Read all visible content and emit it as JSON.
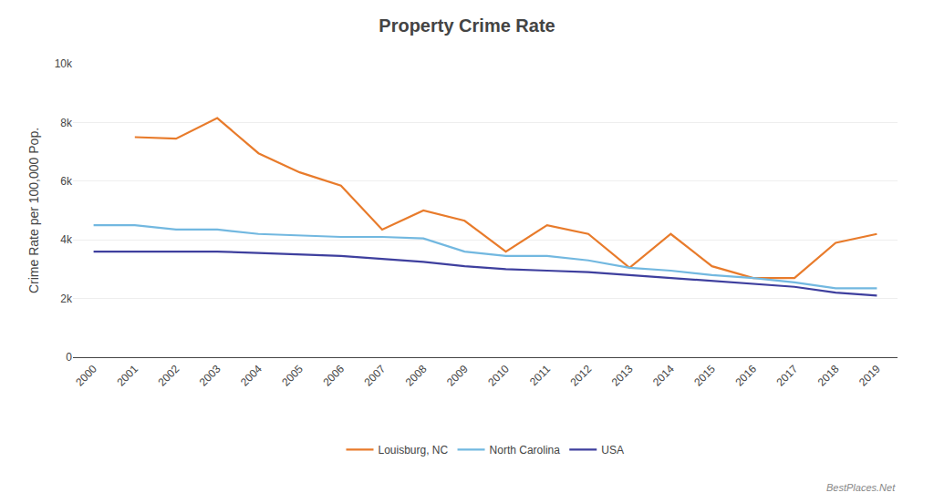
{
  "chart_data": {
    "type": "line",
    "title": "Property Crime Rate",
    "y_label": "Crime Rate per 100,000 Pop.",
    "x": [
      2000,
      2001,
      2002,
      2003,
      2004,
      2005,
      2006,
      2007,
      2008,
      2009,
      2010,
      2011,
      2012,
      2013,
      2014,
      2015,
      2016,
      2017,
      2018,
      2019
    ],
    "series": [
      {
        "name": "Louisburg, NC",
        "color": "#E87B2B",
        "values": [
          null,
          7500,
          7450,
          8150,
          6950,
          6300,
          5850,
          4350,
          5000,
          4650,
          3600,
          4500,
          4200,
          3050,
          4200,
          3100,
          2700,
          2700,
          3900,
          4200
        ]
      },
      {
        "name": "North Carolina",
        "color": "#72B8E0",
        "values": [
          4500,
          4500,
          4350,
          4350,
          4200,
          4150,
          4100,
          4100,
          4050,
          3600,
          3450,
          3450,
          3300,
          3050,
          2950,
          2800,
          2700,
          2550,
          2350,
          2350
        ]
      },
      {
        "name": "USA",
        "color": "#3E3F9E",
        "values": [
          3600,
          3600,
          3600,
          3600,
          3550,
          3500,
          3450,
          3350,
          3250,
          3100,
          3000,
          2950,
          2900,
          2800,
          2700,
          2600,
          2500,
          2400,
          2200,
          2100
        ]
      }
    ],
    "xlim": [
      1999.5,
      2019.5
    ],
    "xticks": [
      2000,
      2001,
      2002,
      2003,
      2004,
      2005,
      2006,
      2007,
      2008,
      2009,
      2010,
      2011,
      2012,
      2013,
      2014,
      2015,
      2016,
      2017,
      2018,
      2019
    ],
    "ylim": [
      0,
      10000
    ],
    "yticks": [
      0,
      {
        "value": 2000,
        "label": "2k"
      },
      {
        "value": 4000,
        "label": "4k"
      },
      {
        "value": 6000,
        "label": "6k"
      },
      {
        "value": 8000,
        "label": "8k"
      },
      {
        "value": 10000,
        "label": "10k"
      }
    ],
    "grid": "y",
    "legend": "bottom",
    "annotations": [
      "BestPlaces.Net"
    ]
  }
}
